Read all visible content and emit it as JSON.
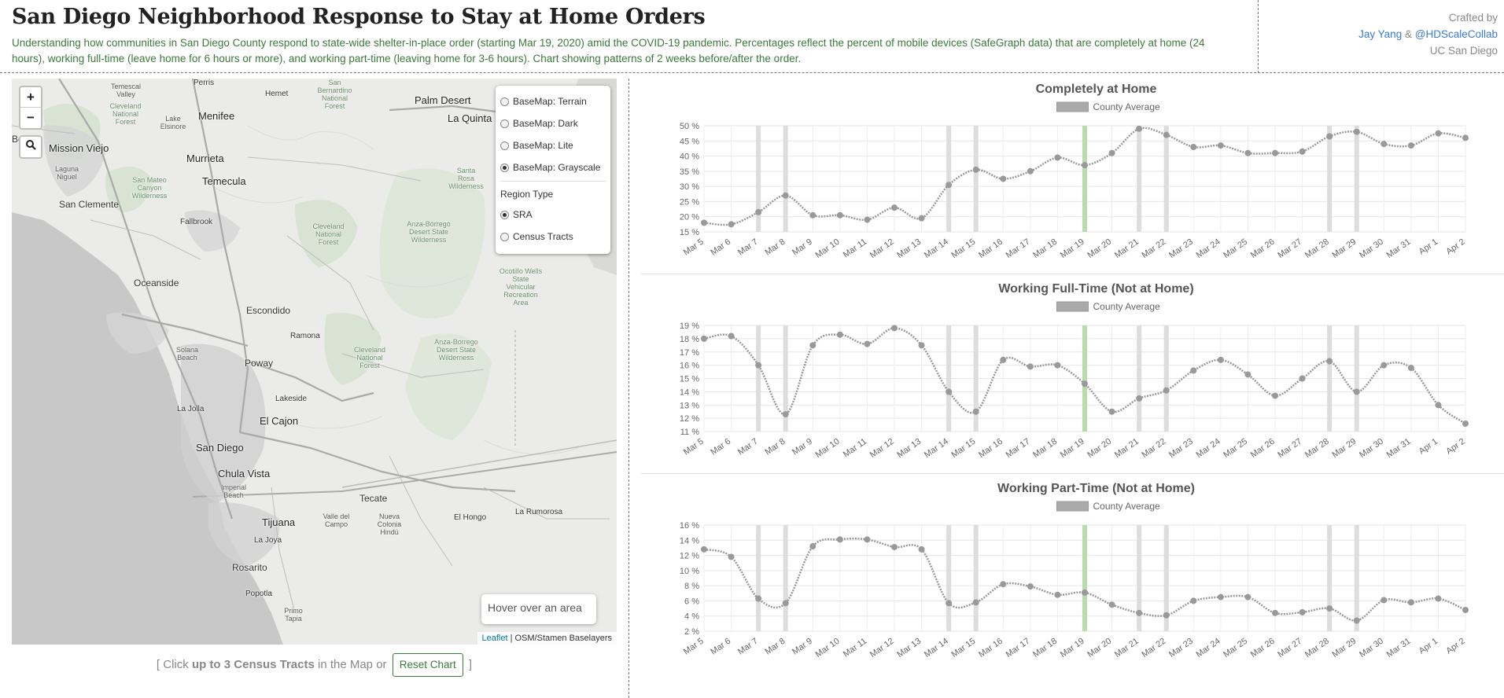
{
  "header": {
    "title": "San Diego Neighborhood Response to Stay at Home Orders",
    "description": "Understanding how communities in San Diego County respond to state-wide shelter-in-place order (starting Mar 19, 2020) amid the COVID-19 pandemic. Percentages reflect the percent of mobile devices (SafeGraph data) that are completely at home (24 hours), working full-time (leave home for 6 hours or more), and working part-time (leaving home for 3-6 hours). Chart showing patterns of 2 weeks before/after the order.",
    "credits_label": "Crafted by",
    "author": "Jay Yang",
    "amp": "&",
    "org_link": "@HDScaleCollab",
    "institution": "UC San Diego"
  },
  "map": {
    "zoom_in": "+",
    "zoom_out": "−",
    "search_icon": "search-icon",
    "layers": {
      "basemaps": [
        {
          "label": "BaseMap: Terrain",
          "selected": false
        },
        {
          "label": "BaseMap: Dark",
          "selected": false
        },
        {
          "label": "BaseMap: Lite",
          "selected": false
        },
        {
          "label": "BaseMap: Grayscale",
          "selected": true
        }
      ],
      "region_type_label": "Region Type",
      "regions": [
        {
          "label": "SRA",
          "selected": true
        },
        {
          "label": "Census Tracts",
          "selected": false
        }
      ]
    },
    "hover_text": "Hover over an area",
    "attribution_leaflet": "Leaflet",
    "attribution_rest": " | OSM/Stamen Baselayers",
    "places": [
      {
        "name": "Temescal Valley"
      },
      {
        "name": "Perris"
      },
      {
        "name": "Hemet"
      },
      {
        "name": "San Bernardino National Forest"
      },
      {
        "name": "Palm Desert"
      },
      {
        "name": "La Quinta"
      },
      {
        "name": "Cleveland National Forest"
      },
      {
        "name": "Lake Elsinore"
      },
      {
        "name": "Menifee"
      },
      {
        "name": "Mission Viejo"
      },
      {
        "name": "Laguna Niguel"
      },
      {
        "name": "Murrieta"
      },
      {
        "name": "Temecula"
      },
      {
        "name": "San Mateo Canyon Wilderness"
      },
      {
        "name": "Santa Rosa Wilderness"
      },
      {
        "name": "San Clemente"
      },
      {
        "name": "Fallbrook"
      },
      {
        "name": "Cleveland National Forest"
      },
      {
        "name": "Anza-Borrego Desert State Wilderness"
      },
      {
        "name": "Ocotillo Wells State Vehicular Recreation Area"
      },
      {
        "name": "Oceanside"
      },
      {
        "name": "Escondido"
      },
      {
        "name": "Ramona"
      },
      {
        "name": "Solana Beach"
      },
      {
        "name": "Poway"
      },
      {
        "name": "Cleveland National Forest"
      },
      {
        "name": "Anza-Borrego Desert State Wilderness"
      },
      {
        "name": "Lakeside"
      },
      {
        "name": "La Jolla"
      },
      {
        "name": "El Cajon"
      },
      {
        "name": "San Diego"
      },
      {
        "name": "Chula Vista"
      },
      {
        "name": "Imperial Beach"
      },
      {
        "name": "Tecate"
      },
      {
        "name": "Tijuana"
      },
      {
        "name": "Valle del Campo"
      },
      {
        "name": "Nueva Colonia Hindú"
      },
      {
        "name": "El Hongo"
      },
      {
        "name": "La Rumorosa"
      },
      {
        "name": "La Joya"
      },
      {
        "name": "Rosarito"
      },
      {
        "name": "Popotla"
      },
      {
        "name": "Primo Tapia"
      },
      {
        "name": "Be"
      }
    ]
  },
  "footer": {
    "open_bracket": "[ Click",
    "bold_text": "up to 3 Census Tracts",
    "middle_text": "in the Map or",
    "reset_label": "Reset Chart",
    "close_bracket": "]"
  },
  "chart_data": [
    {
      "type": "line",
      "title": "Completely at Home",
      "legend": "County Average",
      "categories": [
        "Mar 5",
        "Mar 6",
        "Mar 7",
        "Mar 8",
        "Mar 9",
        "Mar 10",
        "Mar 11",
        "Mar 12",
        "Mar 13",
        "Mar 14",
        "Mar 15",
        "Mar 16",
        "Mar 17",
        "Mar 18",
        "Mar 19",
        "Mar 20",
        "Mar 21",
        "Mar 22",
        "Mar 23",
        "Mar 24",
        "Mar 25",
        "Mar 26",
        "Mar 27",
        "Mar 28",
        "Mar 29",
        "Mar 30",
        "Mar 31",
        "Apr 1",
        "Apr 2"
      ],
      "series": [
        {
          "name": "County Average",
          "values": [
            18,
            17.5,
            21.5,
            27,
            20.5,
            20.5,
            19,
            23,
            19.5,
            30.5,
            35.5,
            32.5,
            35,
            39.5,
            37,
            41,
            49,
            47,
            43,
            43.5,
            41,
            41,
            41.5,
            46.5,
            48,
            44,
            43.5,
            47.5,
            46
          ]
        }
      ],
      "yticks": [
        15,
        20,
        25,
        30,
        35,
        40,
        45,
        50
      ],
      "ylim": [
        15,
        50
      ],
      "ytick_suffix": " %",
      "weekend_markers": [
        "Mar 7",
        "Mar 8",
        "Mar 14",
        "Mar 15",
        "Mar 21",
        "Mar 22",
        "Mar 28",
        "Mar 29"
      ],
      "order_marker": "Mar 19",
      "grid": true,
      "legend_position": "top-center"
    },
    {
      "type": "line",
      "title": "Working Full-Time (Not at Home)",
      "legend": "County Average",
      "categories": [
        "Mar 5",
        "Mar 6",
        "Mar 7",
        "Mar 8",
        "Mar 9",
        "Mar 10",
        "Mar 11",
        "Mar 12",
        "Mar 13",
        "Mar 14",
        "Mar 15",
        "Mar 16",
        "Mar 17",
        "Mar 18",
        "Mar 19",
        "Mar 20",
        "Mar 21",
        "Mar 22",
        "Mar 23",
        "Mar 24",
        "Mar 25",
        "Mar 26",
        "Mar 27",
        "Mar 28",
        "Mar 29",
        "Mar 30",
        "Mar 31",
        "Apr 1",
        "Apr 2"
      ],
      "series": [
        {
          "name": "County Average",
          "values": [
            18,
            18.2,
            16,
            12.3,
            17.5,
            18.3,
            17.6,
            18.8,
            17.5,
            14,
            12.5,
            16.4,
            15.9,
            16,
            14.6,
            12.5,
            13.5,
            14.1,
            15.6,
            16.4,
            15.3,
            13.7,
            15,
            16.3,
            14,
            16,
            15.8,
            13,
            11.6
          ]
        }
      ],
      "yticks": [
        11,
        12,
        13,
        14,
        15,
        16,
        17,
        18,
        19
      ],
      "ylim": [
        11,
        19
      ],
      "ytick_suffix": " %",
      "weekend_markers": [
        "Mar 7",
        "Mar 8",
        "Mar 14",
        "Mar 15",
        "Mar 21",
        "Mar 22",
        "Mar 28",
        "Mar 29"
      ],
      "order_marker": "Mar 19",
      "grid": true,
      "legend_position": "top-center"
    },
    {
      "type": "line",
      "title": "Working Part-Time (Not at Home)",
      "legend": "County Average",
      "categories": [
        "Mar 5",
        "Mar 6",
        "Mar 7",
        "Mar 8",
        "Mar 9",
        "Mar 10",
        "Mar 11",
        "Mar 12",
        "Mar 13",
        "Mar 14",
        "Mar 15",
        "Mar 16",
        "Mar 17",
        "Mar 18",
        "Mar 19",
        "Mar 20",
        "Mar 21",
        "Mar 22",
        "Mar 23",
        "Mar 24",
        "Mar 25",
        "Mar 26",
        "Mar 27",
        "Mar 28",
        "Mar 29",
        "Mar 30",
        "Mar 31",
        "Apr 1",
        "Apr 2"
      ],
      "series": [
        {
          "name": "County Average",
          "values": [
            12.8,
            11.8,
            6.3,
            5.7,
            13.2,
            14.1,
            14.1,
            13.1,
            12.8,
            5.7,
            5.8,
            8.2,
            7.9,
            6.8,
            7.1,
            5.5,
            4.4,
            4.1,
            6,
            6.5,
            6.5,
            4.4,
            4.5,
            5,
            3.4,
            6.1,
            5.8,
            6.3,
            4.8
          ]
        }
      ],
      "yticks": [
        2,
        4,
        6,
        8,
        10,
        12,
        14,
        16
      ],
      "ylim": [
        2,
        16
      ],
      "ytick_suffix": " %",
      "weekend_markers": [
        "Mar 7",
        "Mar 8",
        "Mar 14",
        "Mar 15",
        "Mar 21",
        "Mar 22",
        "Mar 28",
        "Mar 29"
      ],
      "order_marker": "Mar 19",
      "grid": true,
      "legend_position": "top-center"
    }
  ],
  "colors": {
    "accent_green": "#3b7a3b",
    "link_blue": "#3a7bd5",
    "series_gray": "#999999",
    "weekend_bar": "#dddddd",
    "order_bar": "#b9dcab"
  }
}
